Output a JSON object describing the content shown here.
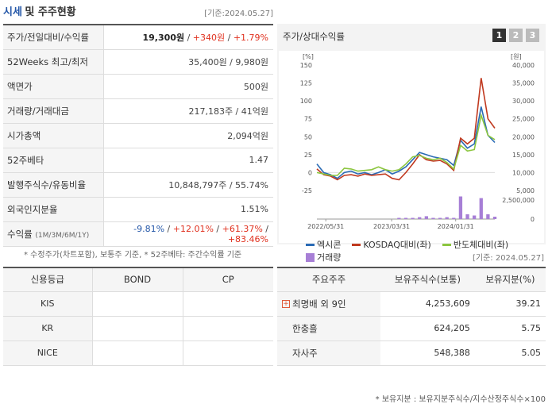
{
  "header": {
    "title_main": "시세",
    "title_rest": "및 주주현황",
    "date": "[기준:2024.05.27]"
  },
  "quote": {
    "rows": [
      {
        "key": "price",
        "label": "주가/전일대비/수익률",
        "price": "19,300원",
        "sep1": " / ",
        "change": "+340원",
        "sep2": " / ",
        "rate": "+1.79%"
      },
      {
        "key": "52w",
        "label": "52Weeks 최고/최저",
        "value": "35,400원 / 9,980원"
      },
      {
        "key": "par",
        "label": "액면가",
        "value": "500원"
      },
      {
        "key": "volume",
        "label": "거래량/거래대금",
        "value": "217,183주 / 41억원"
      },
      {
        "key": "mcap",
        "label": "시가총액",
        "value": "2,094억원"
      },
      {
        "key": "beta",
        "label": "52주베타",
        "value": "1.47"
      },
      {
        "key": "shares",
        "label": "발행주식수/유동비율",
        "value": "10,848,797주 / 55.74%"
      },
      {
        "key": "foreign",
        "label": "외국인지분율",
        "value": "1.51%"
      }
    ],
    "returns": {
      "label": "수익률",
      "sublabel": "(1M/3M/6M/1Y)",
      "r1": "-9.81%",
      "r2": "+12.01%",
      "r3": "+61.37%",
      "r4": "+83.46%",
      "sep": " / "
    },
    "note": "* 수정주가(차트포함), 보통주 기준, * 52주베타: 주간수익률 기준"
  },
  "chart_panel": {
    "title": "주가/상대수익률",
    "tabs": [
      "1",
      "2",
      "3"
    ],
    "active_tab": "1"
  },
  "chart_data": {
    "type": "line",
    "left_unit": "[%]",
    "right_unit": "[원]",
    "y_left_ticks": [
      "150",
      "125",
      "100",
      "75",
      "50",
      "25",
      "0",
      "-25"
    ],
    "y_right_ticks": [
      "40,000",
      "35,000",
      "30,000",
      "25,000",
      "20,000",
      "15,000",
      "10,000",
      "5,000"
    ],
    "volume_ticks": [
      "2,500,000",
      "0"
    ],
    "x_ticks": [
      "2022/05/31",
      "2023/03/31",
      "2024/01/31"
    ],
    "ylim": [
      -25,
      150
    ],
    "series": [
      {
        "name": "엑시콘",
        "color": "#2a6bb5",
        "values": [
          12,
          0,
          -3,
          -8,
          0,
          2,
          -2,
          0,
          -3,
          0,
          4,
          -2,
          2,
          8,
          18,
          28,
          25,
          22,
          20,
          18,
          10,
          45,
          34,
          40,
          92,
          52,
          42
        ]
      },
      {
        "name": "KOSDAQ대비(좌)",
        "color": "#c0391f",
        "values": [
          5,
          -3,
          -5,
          -10,
          -4,
          -3,
          -5,
          -2,
          -4,
          -3,
          -2,
          -8,
          -10,
          0,
          12,
          25,
          18,
          16,
          17,
          12,
          3,
          48,
          40,
          48,
          132,
          75,
          62
        ]
      },
      {
        "name": "반도체대비(좌)",
        "color": "#8cc63f",
        "values": [
          0,
          -2,
          -4,
          -4,
          6,
          5,
          2,
          3,
          4,
          8,
          4,
          2,
          4,
          12,
          22,
          24,
          20,
          18,
          20,
          14,
          5,
          38,
          30,
          32,
          80,
          52,
          46
        ]
      }
    ],
    "volume": {
      "name": "거래량",
      "color": "#a77fd6",
      "values": [
        0,
        0,
        0,
        0,
        0,
        0,
        0,
        0,
        0,
        0,
        0,
        0,
        0.05,
        0.05,
        0.05,
        0.08,
        0.12,
        0.05,
        0.05,
        0.08,
        0.05,
        0.95,
        0.2,
        0.15,
        0.88,
        0.2,
        0.1
      ]
    }
  },
  "credit": {
    "headers": [
      "신용등급",
      "BOND",
      "CP"
    ],
    "rows": [
      {
        "agency": "KIS",
        "bond": "",
        "cp": ""
      },
      {
        "agency": "KR",
        "bond": "",
        "cp": ""
      },
      {
        "agency": "NICE",
        "bond": "",
        "cp": ""
      }
    ]
  },
  "holders": {
    "date": "[기준: 2024.05.27]",
    "headers": [
      "주요주주",
      "보유주식수(보통)",
      "보유지분(%)"
    ],
    "rows": [
      {
        "name": "최명배 외 9인",
        "shares": "4,253,609",
        "pct": "39.21",
        "expandable": true
      },
      {
        "name": "한충흘",
        "shares": "624,205",
        "pct": "5.75",
        "expandable": false
      },
      {
        "name": "자사주",
        "shares": "548,388",
        "pct": "5.05",
        "expandable": false
      }
    ],
    "note": "* 보유지분 : 보유지분주식수/지수산정주식수×100"
  }
}
